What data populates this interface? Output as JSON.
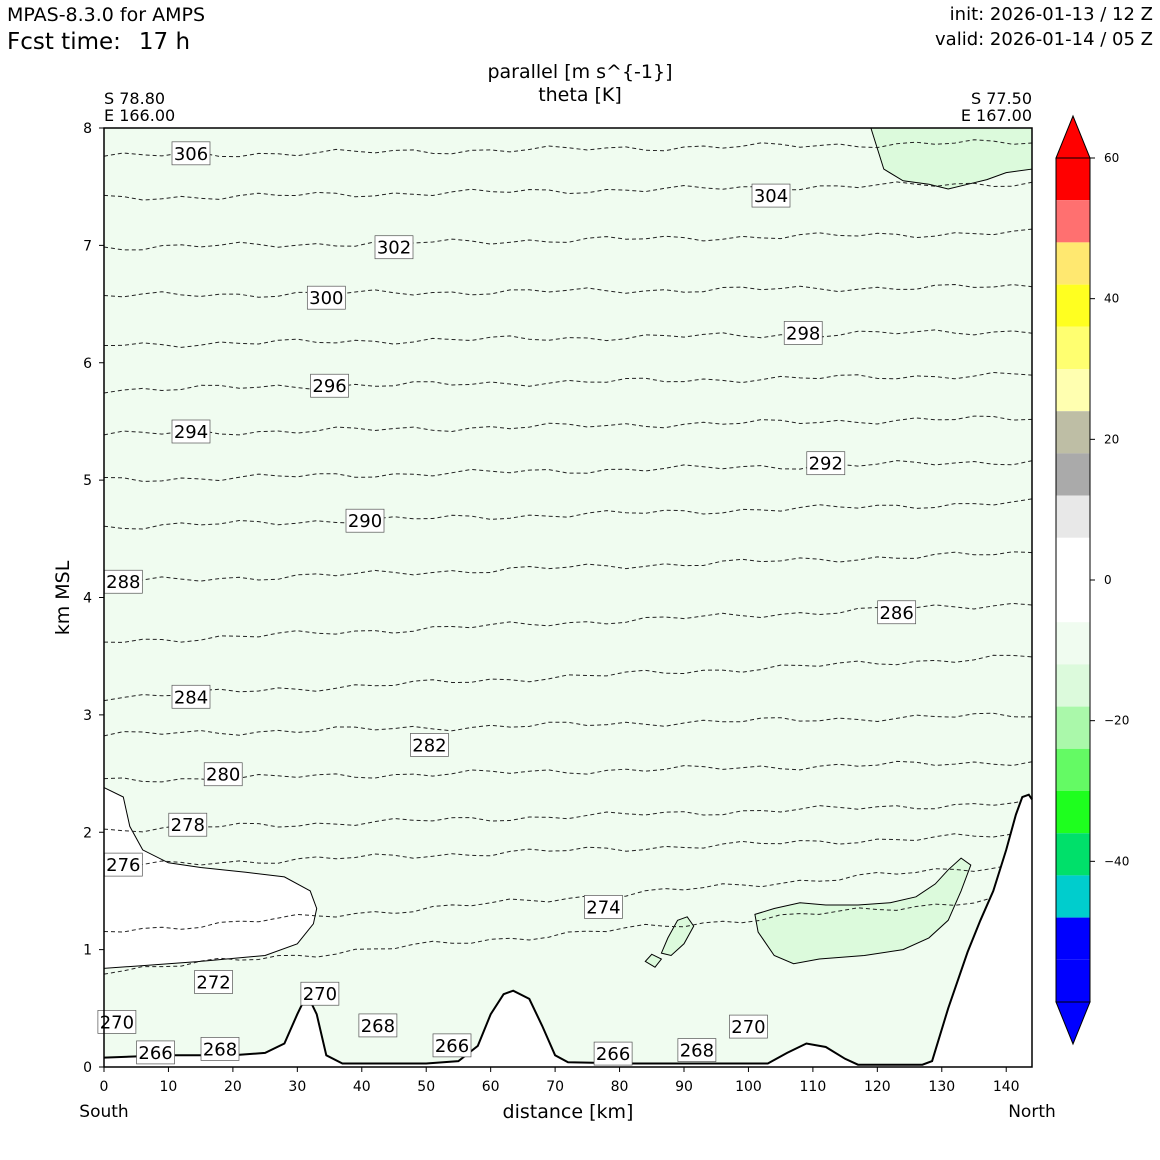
{
  "header": {
    "model": "MPAS-8.3.0 for AMPS",
    "fcst_label": "Fcst time:",
    "fcst_value": "17 h",
    "init": "init: 2026-01-13 / 12 Z",
    "valid": "valid: 2026-01-14 / 05 Z"
  },
  "chart_data": {
    "type": "contour",
    "title": "parallel [m s^{-1}]",
    "subtitle": "theta [K]",
    "xlabel": "distance [km]",
    "ylabel": "km MSL",
    "xlim": [
      0,
      144
    ],
    "ylim": [
      0,
      8
    ],
    "x_ticks": [
      0,
      10,
      20,
      30,
      40,
      50,
      60,
      70,
      80,
      90,
      100,
      110,
      120,
      130,
      140
    ],
    "y_ticks": [
      0,
      1,
      2,
      3,
      4,
      5,
      6,
      7,
      8
    ],
    "start_point": {
      "lat": "S 78.80",
      "lon": "E 166.00",
      "end_label": "South"
    },
    "end_point": {
      "lat": "S 77.50",
      "lon": "E 167.00",
      "end_label": "North"
    },
    "theta_contour_labels": [
      {
        "text": "306",
        "x": 13.5,
        "y": 7.78
      },
      {
        "text": "304",
        "x": 103.5,
        "y": 7.42
      },
      {
        "text": "302",
        "x": 45,
        "y": 6.98
      },
      {
        "text": "300",
        "x": 34.5,
        "y": 6.55
      },
      {
        "text": "298",
        "x": 108.5,
        "y": 6.25
      },
      {
        "text": "296",
        "x": 35,
        "y": 5.8
      },
      {
        "text": "294",
        "x": 13.5,
        "y": 5.41
      },
      {
        "text": "292",
        "x": 112,
        "y": 5.14
      },
      {
        "text": "290",
        "x": 40.5,
        "y": 4.65
      },
      {
        "text": "288",
        "x": 3,
        "y": 4.13
      },
      {
        "text": "286",
        "x": 123,
        "y": 3.87
      },
      {
        "text": "284",
        "x": 13.5,
        "y": 3.15
      },
      {
        "text": "282",
        "x": 50.5,
        "y": 2.74
      },
      {
        "text": "280",
        "x": 18.5,
        "y": 2.49
      },
      {
        "text": "278",
        "x": 13,
        "y": 2.06
      },
      {
        "text": "276",
        "x": 3,
        "y": 1.72
      },
      {
        "text": "274",
        "x": 77.5,
        "y": 1.36
      },
      {
        "text": "272",
        "x": 17,
        "y": 0.72
      },
      {
        "text": "270",
        "x": 33.5,
        "y": 0.62
      },
      {
        "text": "270",
        "x": 2,
        "y": 0.38
      },
      {
        "text": "270",
        "x": 100,
        "y": 0.34
      },
      {
        "text": "268",
        "x": 42.5,
        "y": 0.35
      },
      {
        "text": "268",
        "x": 18,
        "y": 0.15
      },
      {
        "text": "268",
        "x": 92,
        "y": 0.14
      },
      {
        "text": "266",
        "x": 8,
        "y": 0.12
      },
      {
        "text": "266",
        "x": 54,
        "y": 0.18
      },
      {
        "text": "266",
        "x": 79,
        "y": 0.11
      }
    ],
    "theta_contour_levels": [
      306,
      304,
      302,
      300,
      298,
      296,
      294,
      292,
      290,
      288,
      286,
      284,
      282,
      280,
      278,
      276,
      274,
      272
    ],
    "theta_contour_heights_left": [
      7.76,
      7.4,
      6.98,
      6.57,
      6.15,
      5.77,
      5.39,
      5.0,
      4.6,
      4.13,
      3.62,
      3.15,
      2.83,
      2.44,
      2.02,
      1.71,
      1.15,
      0.82
    ],
    "theta_contour_heights_right": [
      7.88,
      7.53,
      7.11,
      6.65,
      6.27,
      5.9,
      5.53,
      5.16,
      4.81,
      4.38,
      3.95,
      3.5,
      3.0,
      2.6,
      2.25,
      1.98,
      1.73,
      1.45
    ],
    "terrain": [
      [
        0,
        0.08
      ],
      [
        10,
        0.1
      ],
      [
        20,
        0.1
      ],
      [
        25,
        0.12
      ],
      [
        28,
        0.2
      ],
      [
        30,
        0.45
      ],
      [
        31.5,
        0.62
      ],
      [
        33,
        0.45
      ],
      [
        34.5,
        0.1
      ],
      [
        37,
        0.03
      ],
      [
        50,
        0.03
      ],
      [
        55,
        0.05
      ],
      [
        58,
        0.18
      ],
      [
        60,
        0.45
      ],
      [
        62,
        0.62
      ],
      [
        63.5,
        0.65
      ],
      [
        66,
        0.58
      ],
      [
        68,
        0.35
      ],
      [
        70,
        0.1
      ],
      [
        72,
        0.04
      ],
      [
        82,
        0.03
      ],
      [
        100,
        0.03
      ],
      [
        103,
        0.03
      ],
      [
        106,
        0.12
      ],
      [
        109,
        0.2
      ],
      [
        112,
        0.17
      ],
      [
        115,
        0.07
      ],
      [
        117,
        0.02
      ],
      [
        127,
        0.02
      ],
      [
        128.5,
        0.05
      ],
      [
        131,
        0.5
      ],
      [
        134,
        0.98
      ],
      [
        136,
        1.25
      ],
      [
        138,
        1.5
      ],
      [
        140,
        1.85
      ],
      [
        141.5,
        2.15
      ],
      [
        142.5,
        2.3
      ],
      [
        143.5,
        2.32
      ],
      [
        144,
        2.28
      ]
    ],
    "colorbar": {
      "ticks": [
        60,
        40,
        20,
        0,
        -20,
        -40
      ],
      "tick_labels": [
        "60",
        "40",
        "20",
        "0",
        "−20",
        "−40"
      ],
      "levels_top_down": [
        60,
        54,
        48,
        42,
        36,
        30,
        24,
        18,
        12,
        6,
        0,
        -6,
        -12,
        -18,
        -24,
        -30,
        -36,
        -42,
        -48,
        -54
      ],
      "colors_top_down": [
        "#ff0000",
        "#ff7070",
        "#ffe870",
        "#ffff20",
        "#ffff70",
        "#ffffb0",
        "#bebea5",
        "#aaaaaa",
        "#e8e8e8",
        "#ffffff",
        "#ffffff",
        "#f0fcf0",
        "#dcfadc",
        "#aaf8aa",
        "#64fa64",
        "#1eff1e",
        "#00e06a",
        "#00cdcd",
        "#0000ff",
        "#0000ff"
      ],
      "over_color": "#ff0000",
      "under_color": "#0000ff"
    },
    "shading": {
      "background": "#f0fcf0",
      "stronger_pockets": "#dcfadc",
      "positive_region": "#ffffff"
    }
  }
}
